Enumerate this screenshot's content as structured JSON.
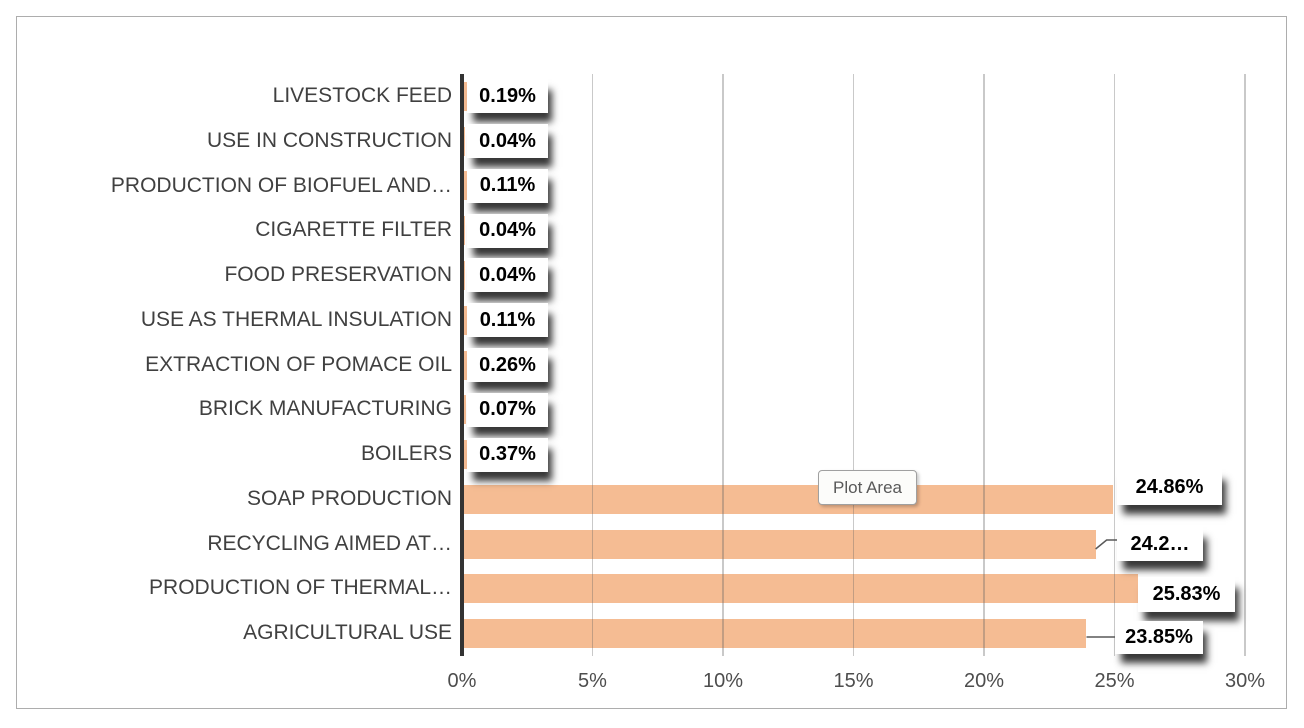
{
  "chart_data": {
    "type": "bar",
    "orientation": "horizontal",
    "title": "",
    "xlabel": "",
    "ylabel": "",
    "categories": [
      "LIVESTOCK FEED",
      "USE IN CONSTRUCTION",
      "PRODUCTION OF BIOFUEL AND…",
      "CIGARETTE FILTER",
      "FOOD PRESERVATION",
      "USE AS THERMAL INSULATION",
      "EXTRACTION OF POMACE OIL",
      "BRICK MANUFACTURING",
      "BOILERS",
      "SOAP PRODUCTION",
      "RECYCLING AIMED AT…",
      "PRODUCTION OF THERMAL…",
      "AGRICULTURAL USE"
    ],
    "values": [
      0.19,
      0.04,
      0.11,
      0.04,
      0.04,
      0.11,
      0.26,
      0.07,
      0.37,
      24.86,
      24.2,
      25.83,
      23.85
    ],
    "value_labels": [
      "0.19%",
      "0.04%",
      "0.11%",
      "0.04%",
      "0.04%",
      "0.11%",
      "0.26%",
      "0.07%",
      "0.37%",
      "24.86%",
      "24.2…",
      "25.83%",
      "23.85%"
    ],
    "x_ticks": [
      "0%",
      "5%",
      "10%",
      "15%",
      "20%",
      "25%",
      "30%"
    ],
    "xlim": [
      0,
      30
    ],
    "grid": true,
    "legend": false,
    "bar_color": "#F5BC93"
  },
  "tooltip": {
    "label": "Plot Area"
  },
  "colors": {
    "bar": "#F5BC93",
    "axis_line": "#333333",
    "category_text": "#404040",
    "tick_text": "#4D4D4D",
    "data_label_text": "#000000",
    "data_label_bg": "#FFFFFF",
    "frame_border": "#ADADAD"
  }
}
